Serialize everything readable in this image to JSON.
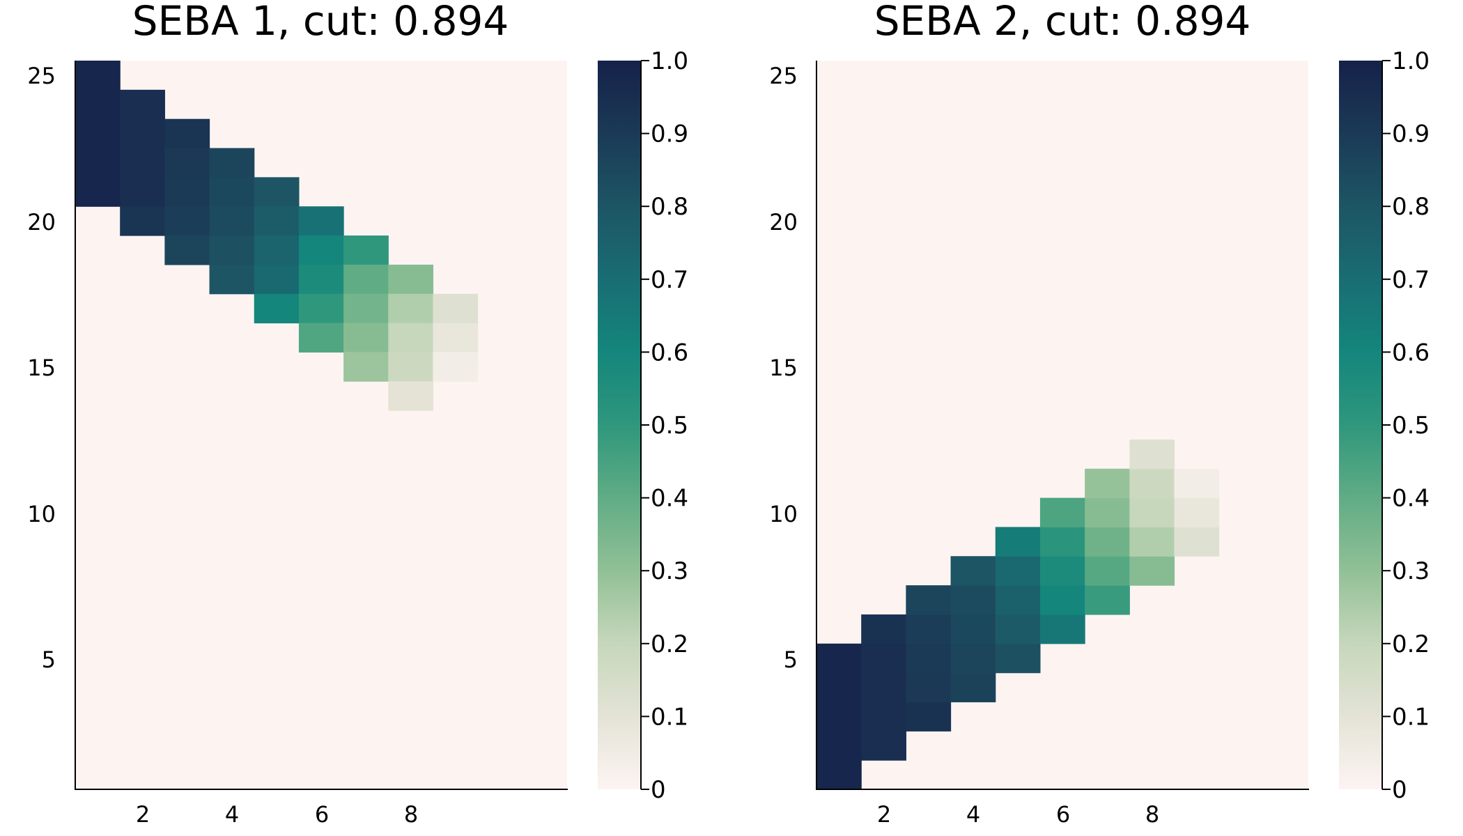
{
  "chart_data": [
    {
      "type": "heatmap",
      "title": "SEBA 1, cut: 0.894",
      "xlabel": "",
      "ylabel": "",
      "x_range": [
        0.5,
        11.5
      ],
      "y_range": [
        0.5,
        25.5
      ],
      "x_ticks": [
        "2",
        "4",
        "6",
        "8"
      ],
      "y_ticks": [
        "5",
        "10",
        "15",
        "20",
        "25"
      ],
      "background_value": 0,
      "colorbar": {
        "range": [
          0,
          1
        ],
        "ticks": [
          "0",
          "0.1",
          "0.2",
          "0.3",
          "0.4",
          "0.5",
          "0.6",
          "0.7",
          "0.8",
          "0.9",
          "1.0"
        ]
      },
      "grid": false,
      "cells": [
        {
          "x": 1,
          "y": 25,
          "v": 0.98
        },
        {
          "x": 1,
          "y": 24,
          "v": 0.98
        },
        {
          "x": 1,
          "y": 23,
          "v": 0.98
        },
        {
          "x": 1,
          "y": 22,
          "v": 0.98
        },
        {
          "x": 1,
          "y": 21,
          "v": 0.98
        },
        {
          "x": 2,
          "y": 24,
          "v": 0.95
        },
        {
          "x": 2,
          "y": 23,
          "v": 0.95
        },
        {
          "x": 2,
          "y": 22,
          "v": 0.95
        },
        {
          "x": 2,
          "y": 21,
          "v": 0.95
        },
        {
          "x": 2,
          "y": 20,
          "v": 0.92
        },
        {
          "x": 3,
          "y": 23,
          "v": 0.92
        },
        {
          "x": 3,
          "y": 22,
          "v": 0.91
        },
        {
          "x": 3,
          "y": 21,
          "v": 0.9
        },
        {
          "x": 3,
          "y": 20,
          "v": 0.89
        },
        {
          "x": 3,
          "y": 19,
          "v": 0.86
        },
        {
          "x": 4,
          "y": 22,
          "v": 0.86
        },
        {
          "x": 4,
          "y": 21,
          "v": 0.85
        },
        {
          "x": 4,
          "y": 20,
          "v": 0.84
        },
        {
          "x": 4,
          "y": 19,
          "v": 0.82
        },
        {
          "x": 4,
          "y": 18,
          "v": 0.8
        },
        {
          "x": 5,
          "y": 21,
          "v": 0.8
        },
        {
          "x": 5,
          "y": 20,
          "v": 0.77
        },
        {
          "x": 5,
          "y": 19,
          "v": 0.74
        },
        {
          "x": 5,
          "y": 18,
          "v": 0.72
        },
        {
          "x": 5,
          "y": 17,
          "v": 0.6
        },
        {
          "x": 6,
          "y": 20,
          "v": 0.68
        },
        {
          "x": 6,
          "y": 19,
          "v": 0.6
        },
        {
          "x": 6,
          "y": 18,
          "v": 0.57
        },
        {
          "x": 6,
          "y": 17,
          "v": 0.5
        },
        {
          "x": 6,
          "y": 16,
          "v": 0.43
        },
        {
          "x": 7,
          "y": 19,
          "v": 0.5
        },
        {
          "x": 7,
          "y": 18,
          "v": 0.4
        },
        {
          "x": 7,
          "y": 17,
          "v": 0.36
        },
        {
          "x": 7,
          "y": 16,
          "v": 0.32
        },
        {
          "x": 7,
          "y": 15,
          "v": 0.28
        },
        {
          "x": 8,
          "y": 18,
          "v": 0.32
        },
        {
          "x": 8,
          "y": 17,
          "v": 0.24
        },
        {
          "x": 8,
          "y": 16,
          "v": 0.2
        },
        {
          "x": 8,
          "y": 15,
          "v": 0.18
        },
        {
          "x": 8,
          "y": 14,
          "v": 0.1
        },
        {
          "x": 9,
          "y": 17,
          "v": 0.12
        },
        {
          "x": 9,
          "y": 16,
          "v": 0.08
        },
        {
          "x": 9,
          "y": 15,
          "v": 0.04
        }
      ]
    },
    {
      "type": "heatmap",
      "title": "SEBA 2, cut: 0.894",
      "xlabel": "",
      "ylabel": "",
      "x_range": [
        0.5,
        11.5
      ],
      "y_range": [
        0.5,
        25.5
      ],
      "x_ticks": [
        "2",
        "4",
        "6",
        "8"
      ],
      "y_ticks": [
        "5",
        "10",
        "15",
        "20",
        "25"
      ],
      "background_value": 0,
      "colorbar": {
        "range": [
          0,
          1
        ],
        "ticks": [
          "0",
          "0.1",
          "0.2",
          "0.3",
          "0.4",
          "0.5",
          "0.6",
          "0.7",
          "0.8",
          "0.9",
          "1.0"
        ]
      },
      "grid": false,
      "cells": [
        {
          "x": 1,
          "y": 1,
          "v": 0.98
        },
        {
          "x": 1,
          "y": 2,
          "v": 0.98
        },
        {
          "x": 1,
          "y": 3,
          "v": 0.98
        },
        {
          "x": 1,
          "y": 4,
          "v": 0.98
        },
        {
          "x": 1,
          "y": 5,
          "v": 0.98
        },
        {
          "x": 2,
          "y": 2,
          "v": 0.95
        },
        {
          "x": 2,
          "y": 3,
          "v": 0.95
        },
        {
          "x": 2,
          "y": 4,
          "v": 0.95
        },
        {
          "x": 2,
          "y": 5,
          "v": 0.95
        },
        {
          "x": 2,
          "y": 6,
          "v": 0.93
        },
        {
          "x": 3,
          "y": 3,
          "v": 0.93
        },
        {
          "x": 3,
          "y": 4,
          "v": 0.91
        },
        {
          "x": 3,
          "y": 5,
          "v": 0.9
        },
        {
          "x": 3,
          "y": 6,
          "v": 0.89
        },
        {
          "x": 3,
          "y": 7,
          "v": 0.86
        },
        {
          "x": 4,
          "y": 4,
          "v": 0.87
        },
        {
          "x": 4,
          "y": 5,
          "v": 0.86
        },
        {
          "x": 4,
          "y": 6,
          "v": 0.85
        },
        {
          "x": 4,
          "y": 7,
          "v": 0.84
        },
        {
          "x": 4,
          "y": 8,
          "v": 0.8
        },
        {
          "x": 5,
          "y": 5,
          "v": 0.82
        },
        {
          "x": 5,
          "y": 6,
          "v": 0.78
        },
        {
          "x": 5,
          "y": 7,
          "v": 0.75
        },
        {
          "x": 5,
          "y": 8,
          "v": 0.72
        },
        {
          "x": 5,
          "y": 9,
          "v": 0.64
        },
        {
          "x": 6,
          "y": 6,
          "v": 0.66
        },
        {
          "x": 6,
          "y": 7,
          "v": 0.6
        },
        {
          "x": 6,
          "y": 8,
          "v": 0.57
        },
        {
          "x": 6,
          "y": 9,
          "v": 0.52
        },
        {
          "x": 6,
          "y": 10,
          "v": 0.44
        },
        {
          "x": 7,
          "y": 7,
          "v": 0.48
        },
        {
          "x": 7,
          "y": 8,
          "v": 0.42
        },
        {
          "x": 7,
          "y": 9,
          "v": 0.37
        },
        {
          "x": 7,
          "y": 10,
          "v": 0.32
        },
        {
          "x": 7,
          "y": 11,
          "v": 0.29
        },
        {
          "x": 8,
          "y": 8,
          "v": 0.32
        },
        {
          "x": 8,
          "y": 9,
          "v": 0.24
        },
        {
          "x": 8,
          "y": 10,
          "v": 0.2
        },
        {
          "x": 8,
          "y": 11,
          "v": 0.18
        },
        {
          "x": 8,
          "y": 12,
          "v": 0.12
        },
        {
          "x": 9,
          "y": 9,
          "v": 0.12
        },
        {
          "x": 9,
          "y": 10,
          "v": 0.08
        },
        {
          "x": 9,
          "y": 11,
          "v": 0.04
        }
      ]
    }
  ]
}
